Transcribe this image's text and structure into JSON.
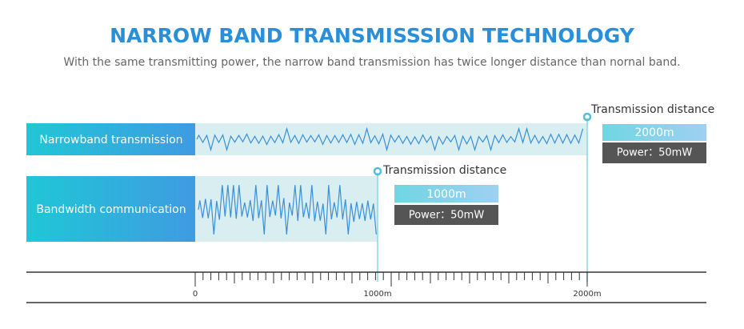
{
  "header": {
    "title": "NARROW BAND TRANSMISSSION TECHNOLOGY",
    "subtitle": "With the same transmitting power, the narrow band transmission has twice longer distance than nornal band."
  },
  "rows": [
    {
      "label": "Narrowband transmission",
      "marker": "Transmission distance",
      "distance": "2000m",
      "power": "Power：50mW"
    },
    {
      "label": "Bandwidth communication",
      "marker": "Transmission distance",
      "distance": "1000m",
      "power": "Power：50mW"
    }
  ],
  "axis": {
    "labels": [
      "0",
      "1000m",
      "2000m"
    ]
  }
}
